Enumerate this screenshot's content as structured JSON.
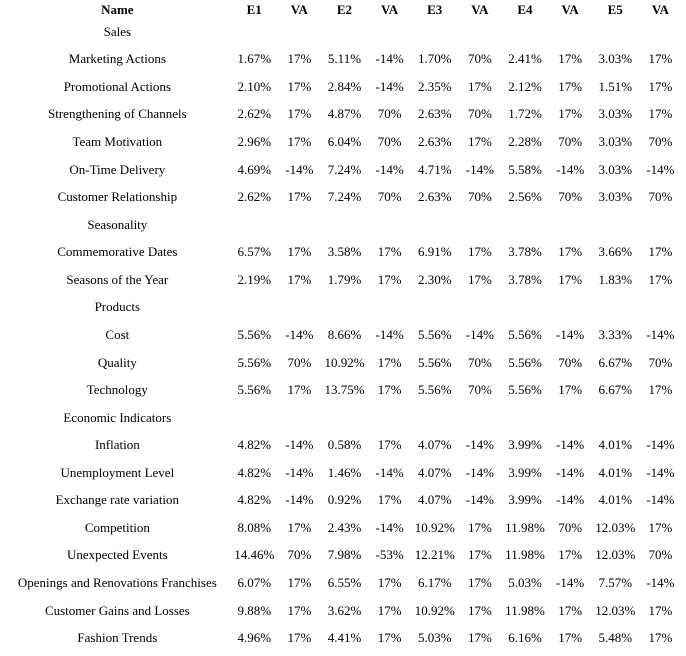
{
  "chart_data": {
    "type": "table",
    "title": "",
    "columns": [
      "Name",
      "E1",
      "VA",
      "E2",
      "VA",
      "E3",
      "VA",
      "E4",
      "VA",
      "E5",
      "VA"
    ],
    "rows": [
      {
        "type": "section",
        "name": "Sales"
      },
      {
        "type": "data",
        "name": "Marketing Actions",
        "values": [
          "1.67%",
          "17%",
          "5.11%",
          "-14%",
          "1.70%",
          "70%",
          "2.41%",
          "17%",
          "3.03%",
          "17%"
        ]
      },
      {
        "type": "data",
        "name": "Promotional Actions",
        "values": [
          "2.10%",
          "17%",
          "2.84%",
          "-14%",
          "2.35%",
          "17%",
          "2.12%",
          "17%",
          "1.51%",
          "17%"
        ]
      },
      {
        "type": "data",
        "name": "Strengthening of Channels",
        "values": [
          "2.62%",
          "17%",
          "4.87%",
          "70%",
          "2.63%",
          "70%",
          "1.72%",
          "17%",
          "3.03%",
          "17%"
        ]
      },
      {
        "type": "data",
        "name": "Team Motivation",
        "values": [
          "2.96%",
          "17%",
          "6.04%",
          "70%",
          "2.63%",
          "17%",
          "2.28%",
          "70%",
          "3.03%",
          "70%"
        ]
      },
      {
        "type": "data",
        "name": "On-Time Delivery",
        "values": [
          "4.69%",
          "-14%",
          "7.24%",
          "-14%",
          "4.71%",
          "-14%",
          "5.58%",
          "-14%",
          "3.03%",
          "-14%"
        ]
      },
      {
        "type": "data",
        "name": "Customer Relationship",
        "values": [
          "2.62%",
          "17%",
          "7.24%",
          "70%",
          "2.63%",
          "70%",
          "2.56%",
          "70%",
          "3.03%",
          "70%"
        ]
      },
      {
        "type": "section",
        "name": "Seasonality"
      },
      {
        "type": "data",
        "name": "Commemorative Dates",
        "values": [
          "6.57%",
          "17%",
          "3.58%",
          "17%",
          "6.91%",
          "17%",
          "3.78%",
          "17%",
          "3.66%",
          "17%"
        ]
      },
      {
        "type": "data",
        "name": "Seasons of the Year",
        "values": [
          "2.19%",
          "17%",
          "1.79%",
          "17%",
          "2.30%",
          "17%",
          "3.78%",
          "17%",
          "1.83%",
          "17%"
        ]
      },
      {
        "type": "section",
        "name": "Products"
      },
      {
        "type": "data",
        "name": "Cost",
        "values": [
          "5.56%",
          "-14%",
          "8.66%",
          "-14%",
          "5.56%",
          "-14%",
          "5.56%",
          "-14%",
          "3.33%",
          "-14%"
        ]
      },
      {
        "type": "data",
        "name": "Quality",
        "values": [
          "5.56%",
          "70%",
          "10.92%",
          "17%",
          "5.56%",
          "70%",
          "5.56%",
          "70%",
          "6.67%",
          "70%"
        ]
      },
      {
        "type": "data",
        "name": "Technology",
        "values": [
          "5.56%",
          "17%",
          "13.75%",
          "17%",
          "5.56%",
          "70%",
          "5.56%",
          "17%",
          "6.67%",
          "17%"
        ]
      },
      {
        "type": "section",
        "name": "Economic Indicators"
      },
      {
        "type": "data",
        "name": "Inflation",
        "values": [
          "4.82%",
          "-14%",
          "0.58%",
          "17%",
          "4.07%",
          "-14%",
          "3.99%",
          "-14%",
          "4.01%",
          "-14%"
        ]
      },
      {
        "type": "data",
        "name": "Unemployment Level",
        "values": [
          "4.82%",
          "-14%",
          "1.46%",
          "-14%",
          "4.07%",
          "-14%",
          "3.99%",
          "-14%",
          "4.01%",
          "-14%"
        ]
      },
      {
        "type": "data",
        "name": "Exchange rate variation",
        "values": [
          "4.82%",
          "-14%",
          "0.92%",
          "17%",
          "4.07%",
          "-14%",
          "3.99%",
          "-14%",
          "4.01%",
          "-14%"
        ]
      },
      {
        "type": "data",
        "name": "Competition",
        "values": [
          "8.08%",
          "17%",
          "2.43%",
          "-14%",
          "10.92%",
          "17%",
          "11.98%",
          "70%",
          "12.03%",
          "17%"
        ]
      },
      {
        "type": "data",
        "name": "Unexpected Events",
        "values": [
          "14.46%",
          "70%",
          "7.98%",
          "-53%",
          "12.21%",
          "17%",
          "11.98%",
          "17%",
          "12.03%",
          "70%"
        ]
      },
      {
        "type": "data",
        "name": "Openings and Renovations Franchises",
        "values": [
          "6.07%",
          "17%",
          "6.55%",
          "17%",
          "6.17%",
          "17%",
          "5.03%",
          "-14%",
          "7.57%",
          "-14%"
        ]
      },
      {
        "type": "data",
        "name": "Customer Gains and Losses",
        "values": [
          "9.88%",
          "17%",
          "3.62%",
          "17%",
          "10.92%",
          "17%",
          "11.98%",
          "17%",
          "12.03%",
          "17%"
        ]
      },
      {
        "type": "data",
        "name": "Fashion Trends",
        "values": [
          "4.96%",
          "17%",
          "4.41%",
          "17%",
          "5.03%",
          "17%",
          "6.16%",
          "17%",
          "5.48%",
          "17%"
        ]
      }
    ]
  }
}
